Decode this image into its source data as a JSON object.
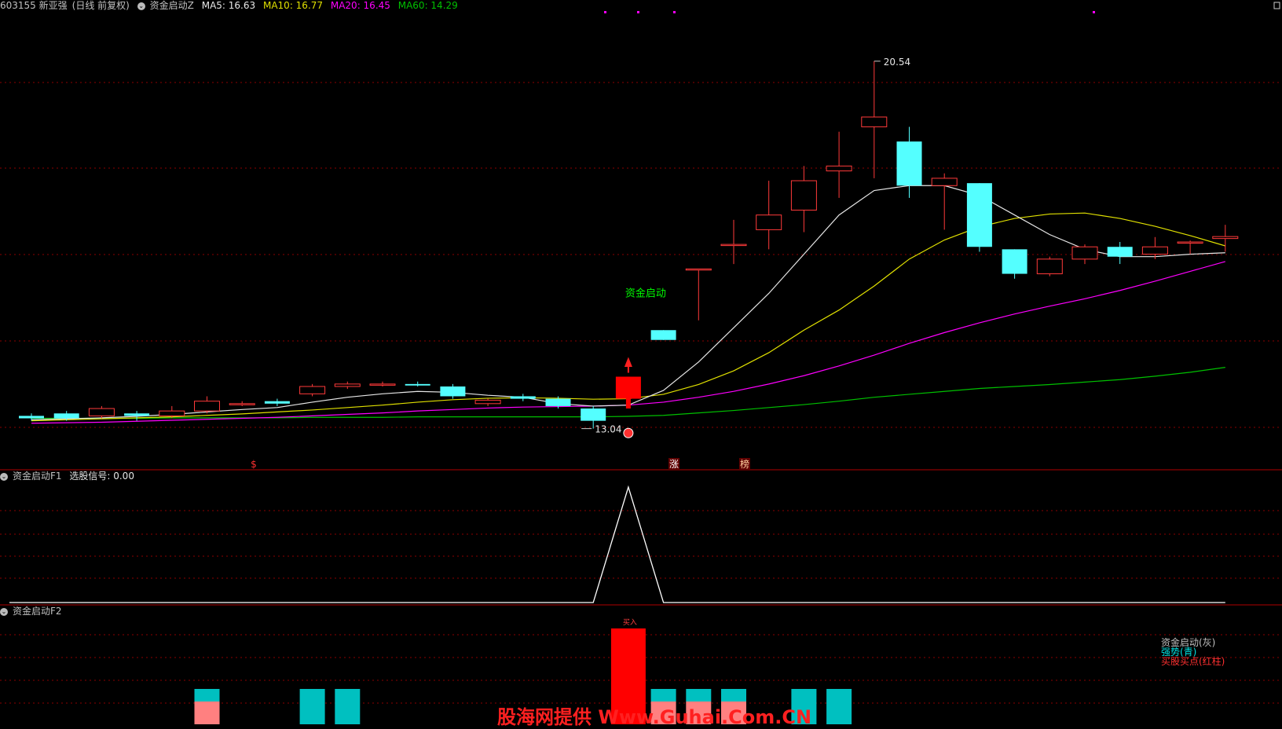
{
  "header": {
    "code": "603155",
    "name": "新亚强",
    "period": "(日线 前复权)",
    "formula": "资金启动Z",
    "ma5_label": "MA5: 16.63",
    "ma10_label": "MA10: 16.77",
    "ma20_label": "MA20: 16.45",
    "ma60_label": "MA60: 14.29"
  },
  "colors": {
    "up": "#ff3a3a",
    "down": "#54ffff",
    "ma5": "#e6e6e6",
    "ma10": "#e0e000",
    "ma20": "#ff00ff",
    "ma60": "#00c000",
    "grid": "#8b0000",
    "signal_bar": "#ff0000",
    "cyan_bar": "#00c0c0",
    "pink_bar": "#ff8080"
  },
  "main_panel": {
    "high_label": "20.54",
    "low_label": "13.04",
    "signal_text": "资金启动",
    "markers": [
      "$",
      "涨",
      "榜"
    ]
  },
  "panel_f1": {
    "title": "资金启动F1",
    "value_label": "选股信号: 0.00"
  },
  "panel_f2": {
    "title": "资金启动F2",
    "bar_label": "买入",
    "legend": [
      "资金启动(灰)",
      "强势(青)",
      "买股买点(红柱)"
    ]
  },
  "watermark": "股海网提供 Www.Guhai.Com.CN",
  "chart_data": {
    "type": "candlestick",
    "candles": [
      {
        "o": 13.3,
        "h": 13.35,
        "l": 13.2,
        "c": 13.25
      },
      {
        "o": 13.35,
        "h": 13.4,
        "l": 13.2,
        "c": 13.25
      },
      {
        "o": 13.3,
        "h": 13.5,
        "l": 13.25,
        "c": 13.45
      },
      {
        "o": 13.35,
        "h": 13.4,
        "l": 13.2,
        "c": 13.3
      },
      {
        "o": 13.3,
        "h": 13.5,
        "l": 13.25,
        "c": 13.4
      },
      {
        "o": 13.4,
        "h": 13.7,
        "l": 13.35,
        "c": 13.6
      },
      {
        "o": 13.55,
        "h": 13.6,
        "l": 13.5,
        "c": 13.55
      },
      {
        "o": 13.6,
        "h": 13.65,
        "l": 13.5,
        "c": 13.55
      },
      {
        "o": 13.75,
        "h": 13.95,
        "l": 13.7,
        "c": 13.9
      },
      {
        "o": 13.9,
        "h": 14.0,
        "l": 13.85,
        "c": 13.95
      },
      {
        "o": 13.95,
        "h": 14.0,
        "l": 13.9,
        "c": 13.95
      },
      {
        "o": 13.95,
        "h": 14.0,
        "l": 13.9,
        "c": 13.92
      },
      {
        "o": 13.9,
        "h": 13.95,
        "l": 13.65,
        "c": 13.7
      },
      {
        "o": 13.55,
        "h": 13.65,
        "l": 13.5,
        "c": 13.62
      },
      {
        "o": 13.7,
        "h": 13.75,
        "l": 13.6,
        "c": 13.65
      },
      {
        "o": 13.65,
        "h": 13.7,
        "l": 13.45,
        "c": 13.5
      },
      {
        "o": 13.45,
        "h": 13.5,
        "l": 13.04,
        "c": 13.2
      },
      {
        "o": 13.65,
        "h": 14.1,
        "l": 13.45,
        "c": 14.1
      },
      {
        "o": 15.05,
        "h": 15.05,
        "l": 14.85,
        "c": 14.85
      },
      {
        "o": 16.3,
        "h": 16.3,
        "l": 15.25,
        "c": 16.3
      },
      {
        "o": 16.8,
        "h": 17.3,
        "l": 16.4,
        "c": 16.8
      },
      {
        "o": 17.1,
        "h": 18.1,
        "l": 16.7,
        "c": 17.4
      },
      {
        "o": 17.5,
        "h": 18.4,
        "l": 17.05,
        "c": 18.1
      },
      {
        "o": 18.3,
        "h": 19.1,
        "l": 17.75,
        "c": 18.4
      },
      {
        "o": 19.2,
        "h": 20.54,
        "l": 18.15,
        "c": 19.4
      },
      {
        "o": 18.9,
        "h": 19.2,
        "l": 17.75,
        "c": 18.0
      },
      {
        "o": 18.0,
        "h": 18.25,
        "l": 17.1,
        "c": 18.15
      },
      {
        "o": 18.05,
        "h": 18.05,
        "l": 16.65,
        "c": 16.75
      },
      {
        "o": 16.7,
        "h": 16.7,
        "l": 16.1,
        "c": 16.2
      },
      {
        "o": 16.2,
        "h": 16.55,
        "l": 16.15,
        "c": 16.5
      },
      {
        "o": 16.5,
        "h": 16.8,
        "l": 16.4,
        "c": 16.75
      },
      {
        "o": 16.75,
        "h": 16.85,
        "l": 16.4,
        "c": 16.55
      },
      {
        "o": 16.6,
        "h": 16.95,
        "l": 16.5,
        "c": 16.75
      },
      {
        "o": 16.85,
        "h": 16.88,
        "l": 16.6,
        "c": 16.85
      },
      {
        "o": 16.92,
        "h": 17.2,
        "l": 16.65,
        "c": 16.96
      }
    ],
    "ma5": [
      13.22,
      13.24,
      13.26,
      13.29,
      13.33,
      13.38,
      13.43,
      13.47,
      13.58,
      13.68,
      13.75,
      13.8,
      13.78,
      13.72,
      13.68,
      13.55,
      13.5,
      13.52,
      13.82,
      14.4,
      15.1,
      15.8,
      16.6,
      17.4,
      17.9,
      18.0,
      18.0,
      17.8,
      17.4,
      17.0,
      16.7,
      16.55,
      16.55,
      16.6,
      16.63
    ],
    "ma10": [
      13.2,
      13.22,
      13.24,
      13.26,
      13.28,
      13.31,
      13.34,
      13.38,
      13.42,
      13.47,
      13.52,
      13.58,
      13.63,
      13.66,
      13.67,
      13.66,
      13.64,
      13.65,
      13.74,
      13.94,
      14.22,
      14.59,
      15.05,
      15.46,
      15.95,
      16.5,
      16.89,
      17.16,
      17.33,
      17.42,
      17.44,
      17.33,
      17.17,
      16.98,
      16.77
    ],
    "ma20": [
      13.15,
      13.16,
      13.17,
      13.19,
      13.21,
      13.23,
      13.25,
      13.27,
      13.3,
      13.33,
      13.36,
      13.4,
      13.43,
      13.46,
      13.48,
      13.49,
      13.5,
      13.52,
      13.58,
      13.68,
      13.8,
      13.95,
      14.12,
      14.32,
      14.54,
      14.78,
      15.0,
      15.2,
      15.38,
      15.54,
      15.69,
      15.86,
      16.05,
      16.25,
      16.45
    ],
    "ma60": [
      13.25,
      13.25,
      13.25,
      13.25,
      13.26,
      13.26,
      13.26,
      13.26,
      13.27,
      13.27,
      13.27,
      13.28,
      13.28,
      13.28,
      13.28,
      13.28,
      13.28,
      13.29,
      13.31,
      13.36,
      13.41,
      13.47,
      13.53,
      13.6,
      13.68,
      13.74,
      13.8,
      13.86,
      13.9,
      13.94,
      13.99,
      14.04,
      14.11,
      14.19,
      14.29
    ],
    "ylim": [
      12.2,
      21.5
    ],
    "signal_f1": [
      0,
      0,
      0,
      0,
      0,
      0,
      0,
      0,
      0,
      0,
      0,
      0,
      0,
      0,
      0,
      0,
      0,
      1,
      0,
      0,
      0,
      0,
      0,
      0,
      0,
      0,
      0,
      0,
      0,
      0,
      0,
      0,
      0,
      0,
      0
    ],
    "f2_bars": [
      {
        "i": 5,
        "type": "pink-cyan"
      },
      {
        "i": 8,
        "type": "cyan"
      },
      {
        "i": 9,
        "type": "cyan"
      },
      {
        "i": 17,
        "type": "red"
      },
      {
        "i": 18,
        "type": "pink-cyan"
      },
      {
        "i": 19,
        "type": "pink-cyan"
      },
      {
        "i": 20,
        "type": "pink-cyan"
      },
      {
        "i": 22,
        "type": "cyan"
      },
      {
        "i": 23,
        "type": "cyan"
      }
    ]
  }
}
